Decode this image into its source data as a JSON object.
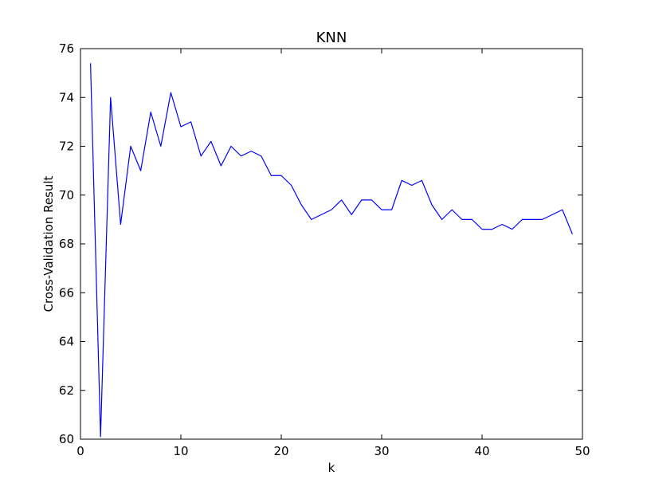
{
  "chart_data": {
    "type": "line",
    "title": "KNN",
    "xlabel": "k",
    "ylabel": "Cross-Validation Result",
    "xlim": [
      0,
      50
    ],
    "ylim": [
      60,
      76
    ],
    "xticks": [
      0,
      10,
      20,
      30,
      40,
      50
    ],
    "yticks": [
      60,
      62,
      64,
      66,
      68,
      70,
      72,
      74,
      76
    ],
    "grid": false,
    "legend": false,
    "series": [
      {
        "color": "#0000ff",
        "x": [
          1,
          2,
          3,
          4,
          5,
          6,
          7,
          8,
          9,
          10,
          11,
          12,
          13,
          14,
          15,
          16,
          17,
          18,
          19,
          20,
          21,
          22,
          23,
          24,
          25,
          26,
          27,
          28,
          29,
          30,
          31,
          32,
          33,
          34,
          35,
          36,
          37,
          38,
          39,
          40,
          41,
          42,
          43,
          44,
          45,
          46,
          47,
          48,
          49
        ],
        "values": [
          75.4,
          60.1,
          74.0,
          68.8,
          72.0,
          71.0,
          73.4,
          72.0,
          74.2,
          72.8,
          73.0,
          71.6,
          72.2,
          71.2,
          72.0,
          71.6,
          71.8,
          71.6,
          70.8,
          70.8,
          70.4,
          69.6,
          69.0,
          69.2,
          69.4,
          69.8,
          69.2,
          69.8,
          69.8,
          69.4,
          69.4,
          70.6,
          70.4,
          70.6,
          69.6,
          69.0,
          69.4,
          69.0,
          69.0,
          68.6,
          68.6,
          68.8,
          68.6,
          69.0,
          69.0,
          69.0,
          69.2,
          69.4,
          68.4
        ]
      }
    ]
  }
}
